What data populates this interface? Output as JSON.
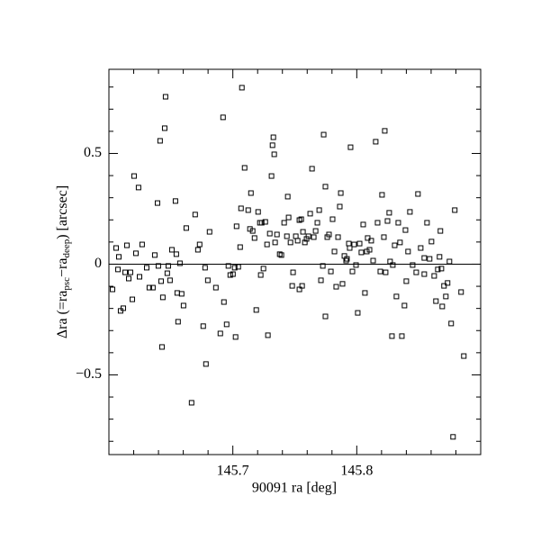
{
  "chart_data": {
    "type": "scatter",
    "x_label": "90091 ra [deg]",
    "y_label": {
      "prefix": "Δra (=ra",
      "sub1": "psc",
      "mid": "−ra",
      "sub2": "deep",
      "suffix": ") [arcsec]"
    },
    "xlim": [
      145.6,
      145.9
    ],
    "ylim": [
      -0.86,
      0.88
    ],
    "xticks": [
      145.7,
      145.8
    ],
    "xminor_ticks": [
      145.62,
      145.64,
      145.66,
      145.68,
      145.72,
      145.74,
      145.76,
      145.78,
      145.82,
      145.84,
      145.86,
      145.88
    ],
    "yticks": [
      {
        "value": -0.5,
        "label": "−0.5"
      },
      0,
      0.5
    ],
    "yminor_ticks": [
      -0.8,
      -0.7,
      -0.6,
      -0.4,
      -0.3,
      -0.2,
      -0.1,
      0.1,
      0.2,
      0.3,
      0.4,
      0.6,
      0.7,
      0.8
    ],
    "hline": 0,
    "color": "#000000",
    "x": [
      145.6029,
      145.6058,
      145.6073,
      145.608,
      145.6094,
      145.6116,
      145.6131,
      145.6145,
      145.616,
      145.6203,
      145.6239,
      145.6174,
      145.6189,
      145.6218,
      145.6247,
      145.6268,
      145.6305,
      145.6326,
      145.6355,
      145.637,
      145.6392,
      145.6399,
      145.6413,
      145.6421,
      145.6428,
      145.6435,
      145.645,
      145.6457,
      145.6471,
      145.6479,
      145.6493,
      145.6508,
      145.6537,
      145.6544,
      145.6551,
      145.6558,
      145.6573,
      145.6587,
      145.6602,
      145.6624,
      145.6667,
      145.6696,
      145.6718,
      145.6732,
      145.6761,
      145.6776,
      145.6783,
      145.6798,
      145.6812,
      145.6863,
      145.6899,
      145.6921,
      145.6928,
      145.695,
      145.6964,
      145.6979,
      145.7001,
      145.7015,
      145.7022,
      145.703,
      145.7044,
      145.7059,
      145.7066,
      145.7073,
      145.7095,
      145.7124,
      145.7138,
      145.7146,
      145.716,
      145.7175,
      145.7189,
      145.7204,
      145.7218,
      145.7233,
      145.7247,
      145.7262,
      145.7276,
      145.7283,
      145.7298,
      145.7312,
      145.732,
      145.7327,
      145.7334,
      145.7341,
      145.7356,
      145.7378,
      145.7392,
      145.7414,
      145.7436,
      145.745,
      145.7465,
      145.7479,
      145.7486,
      145.7508,
      145.7523,
      145.7537,
      145.7552,
      145.7559,
      145.7566,
      145.7581,
      145.7595,
      145.761,
      145.7624,
      145.7639,
      145.7653,
      145.7668,
      145.7682,
      145.7697,
      145.7711,
      145.7726,
      145.7733,
      145.7747,
      145.7762,
      145.7776,
      145.7791,
      145.7805,
      145.782,
      145.7834,
      145.7849,
      145.7863,
      145.7871,
      145.7885,
      145.79,
      145.7914,
      145.7921,
      145.7936,
      145.7943,
      145.795,
      145.7965,
      145.7979,
      145.7994,
      145.8008,
      145.8023,
      145.8037,
      145.8052,
      145.8066,
      145.8081,
      145.8088,
      145.8103,
      145.8117,
      145.8132,
      145.8153,
      145.8168,
      145.819,
      145.8204,
      145.8219,
      145.8226,
      145.8233,
      145.8248,
      145.8262,
      145.8269,
      145.8284,
      145.8291,
      145.8306,
      145.832,
      145.8335,
      145.8349,
      145.8364,
      145.8385,
      145.84,
      145.8414,
      145.8429,
      145.8451,
      145.848,
      145.8494,
      145.8516,
      145.8545,
      145.8567,
      145.8588,
      145.8603,
      145.8625,
      145.8639,
      145.8654,
      145.8668,
      145.8683,
      145.8704,
      145.8719,
      145.8733,
      145.8748,
      145.8762,
      145.8777,
      145.8791,
      145.8842,
      145.8864,
      145.869,
      145.8675,
      145.8545,
      145.8393,
      145.7747,
      145.7537,
      145.7443,
      145.7225
    ],
    "values": [
      -0.114,
      0.073,
      -0.024,
      0.033,
      -0.211,
      -0.199,
      -0.037,
      0.085,
      -0.065,
      0.398,
      0.346,
      -0.037,
      -0.159,
      0.049,
      -0.057,
      0.089,
      -0.016,
      -0.106,
      -0.106,
      0.041,
      0.276,
      -0.008,
      0.557,
      -0.077,
      -0.374,
      -0.15,
      0.614,
      0.756,
      -0.041,
      -0.008,
      -0.073,
      0.065,
      0.285,
      0.045,
      -0.13,
      -0.26,
      0.004,
      -0.134,
      -0.187,
      0.163,
      -0.626,
      0.224,
      0.065,
      0.089,
      -0.28,
      -0.016,
      -0.451,
      -0.073,
      0.146,
      -0.106,
      -0.313,
      0.663,
      -0.171,
      -0.272,
      -0.008,
      -0.049,
      -0.045,
      -0.016,
      -0.329,
      0.171,
      -0.012,
      0.077,
      0.252,
      0.797,
      0.435,
      0.244,
      0.159,
      0.321,
      0.15,
      0.118,
      -0.207,
      0.236,
      0.187,
      0.187,
      -0.02,
      0.191,
      0.089,
      -0.321,
      0.138,
      0.398,
      0.537,
      0.573,
      0.496,
      0.098,
      0.134,
      0.045,
      0.041,
      0.187,
      0.126,
      0.211,
      0.098,
      -0.098,
      -0.037,
      0.126,
      0.106,
      0.199,
      0.203,
      -0.098,
      0.146,
      0.098,
      0.114,
      0.126,
      0.228,
      0.431,
      0.122,
      0.15,
      0.187,
      0.244,
      -0.073,
      -0.008,
      0.585,
      -0.236,
      0.122,
      0.134,
      -0.033,
      0.203,
      0.057,
      -0.102,
      0.122,
      0.26,
      0.321,
      -0.089,
      0.037,
      0.016,
      0.024,
      0.093,
      0.073,
      0.528,
      -0.033,
      0.089,
      -0.004,
      -0.22,
      0.093,
      0.053,
      0.179,
      -0.13,
      0.057,
      0.118,
      0.065,
      0.106,
      0.016,
      0.553,
      0.187,
      -0.033,
      0.313,
      0.122,
      0.602,
      -0.037,
      0.195,
      0.232,
      0.012,
      -0.325,
      -0.004,
      0.085,
      -0.146,
      0.187,
      0.098,
      -0.325,
      -0.187,
      -0.077,
      0.057,
      0.236,
      -0.004,
      -0.037,
      0.317,
      0.073,
      0.028,
      0.187,
      0.024,
      0.102,
      -0.053,
      -0.167,
      -0.024,
      0.033,
      -0.02,
      -0.098,
      -0.146,
      -0.085,
      0.012,
      -0.268,
      -0.78,
      0.244,
      -0.126,
      -0.415,
      -0.191,
      0.15,
      -0.045,
      0.154,
      0.35,
      -0.114,
      0.305,
      -0.049
    ]
  }
}
